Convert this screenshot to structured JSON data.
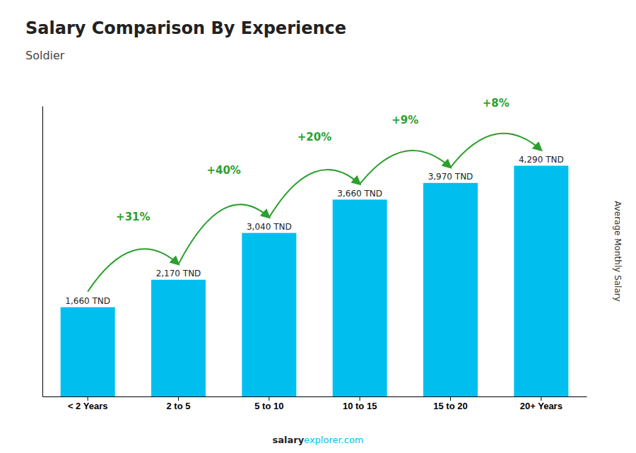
{
  "chart_data": {
    "type": "bar",
    "title": "Salary Comparison By Experience",
    "subtitle": "Soldier",
    "categories": [
      "< 2 Years",
      "2 to 5",
      "5 to 10",
      "10 to 15",
      "15 to 20",
      "20+ Years"
    ],
    "values": [
      1660,
      2170,
      3040,
      3660,
      3970,
      4290
    ],
    "value_labels": [
      "1,660 TND",
      "2,170 TND",
      "3,040 TND",
      "3,660 TND",
      "3,970 TND",
      "4,290 TND"
    ],
    "data_labels": true,
    "color": "#00BFEF",
    "ylabel": "Average Monthly Salary",
    "ylim": [
      0,
      5400
    ],
    "tick_labels": "x",
    "grid": false,
    "annotations": [
      "+31%",
      "+40%",
      "+20%",
      "+9%",
      "+8%"
    ],
    "footer": [
      "salary",
      "explorer.com"
    ]
  }
}
